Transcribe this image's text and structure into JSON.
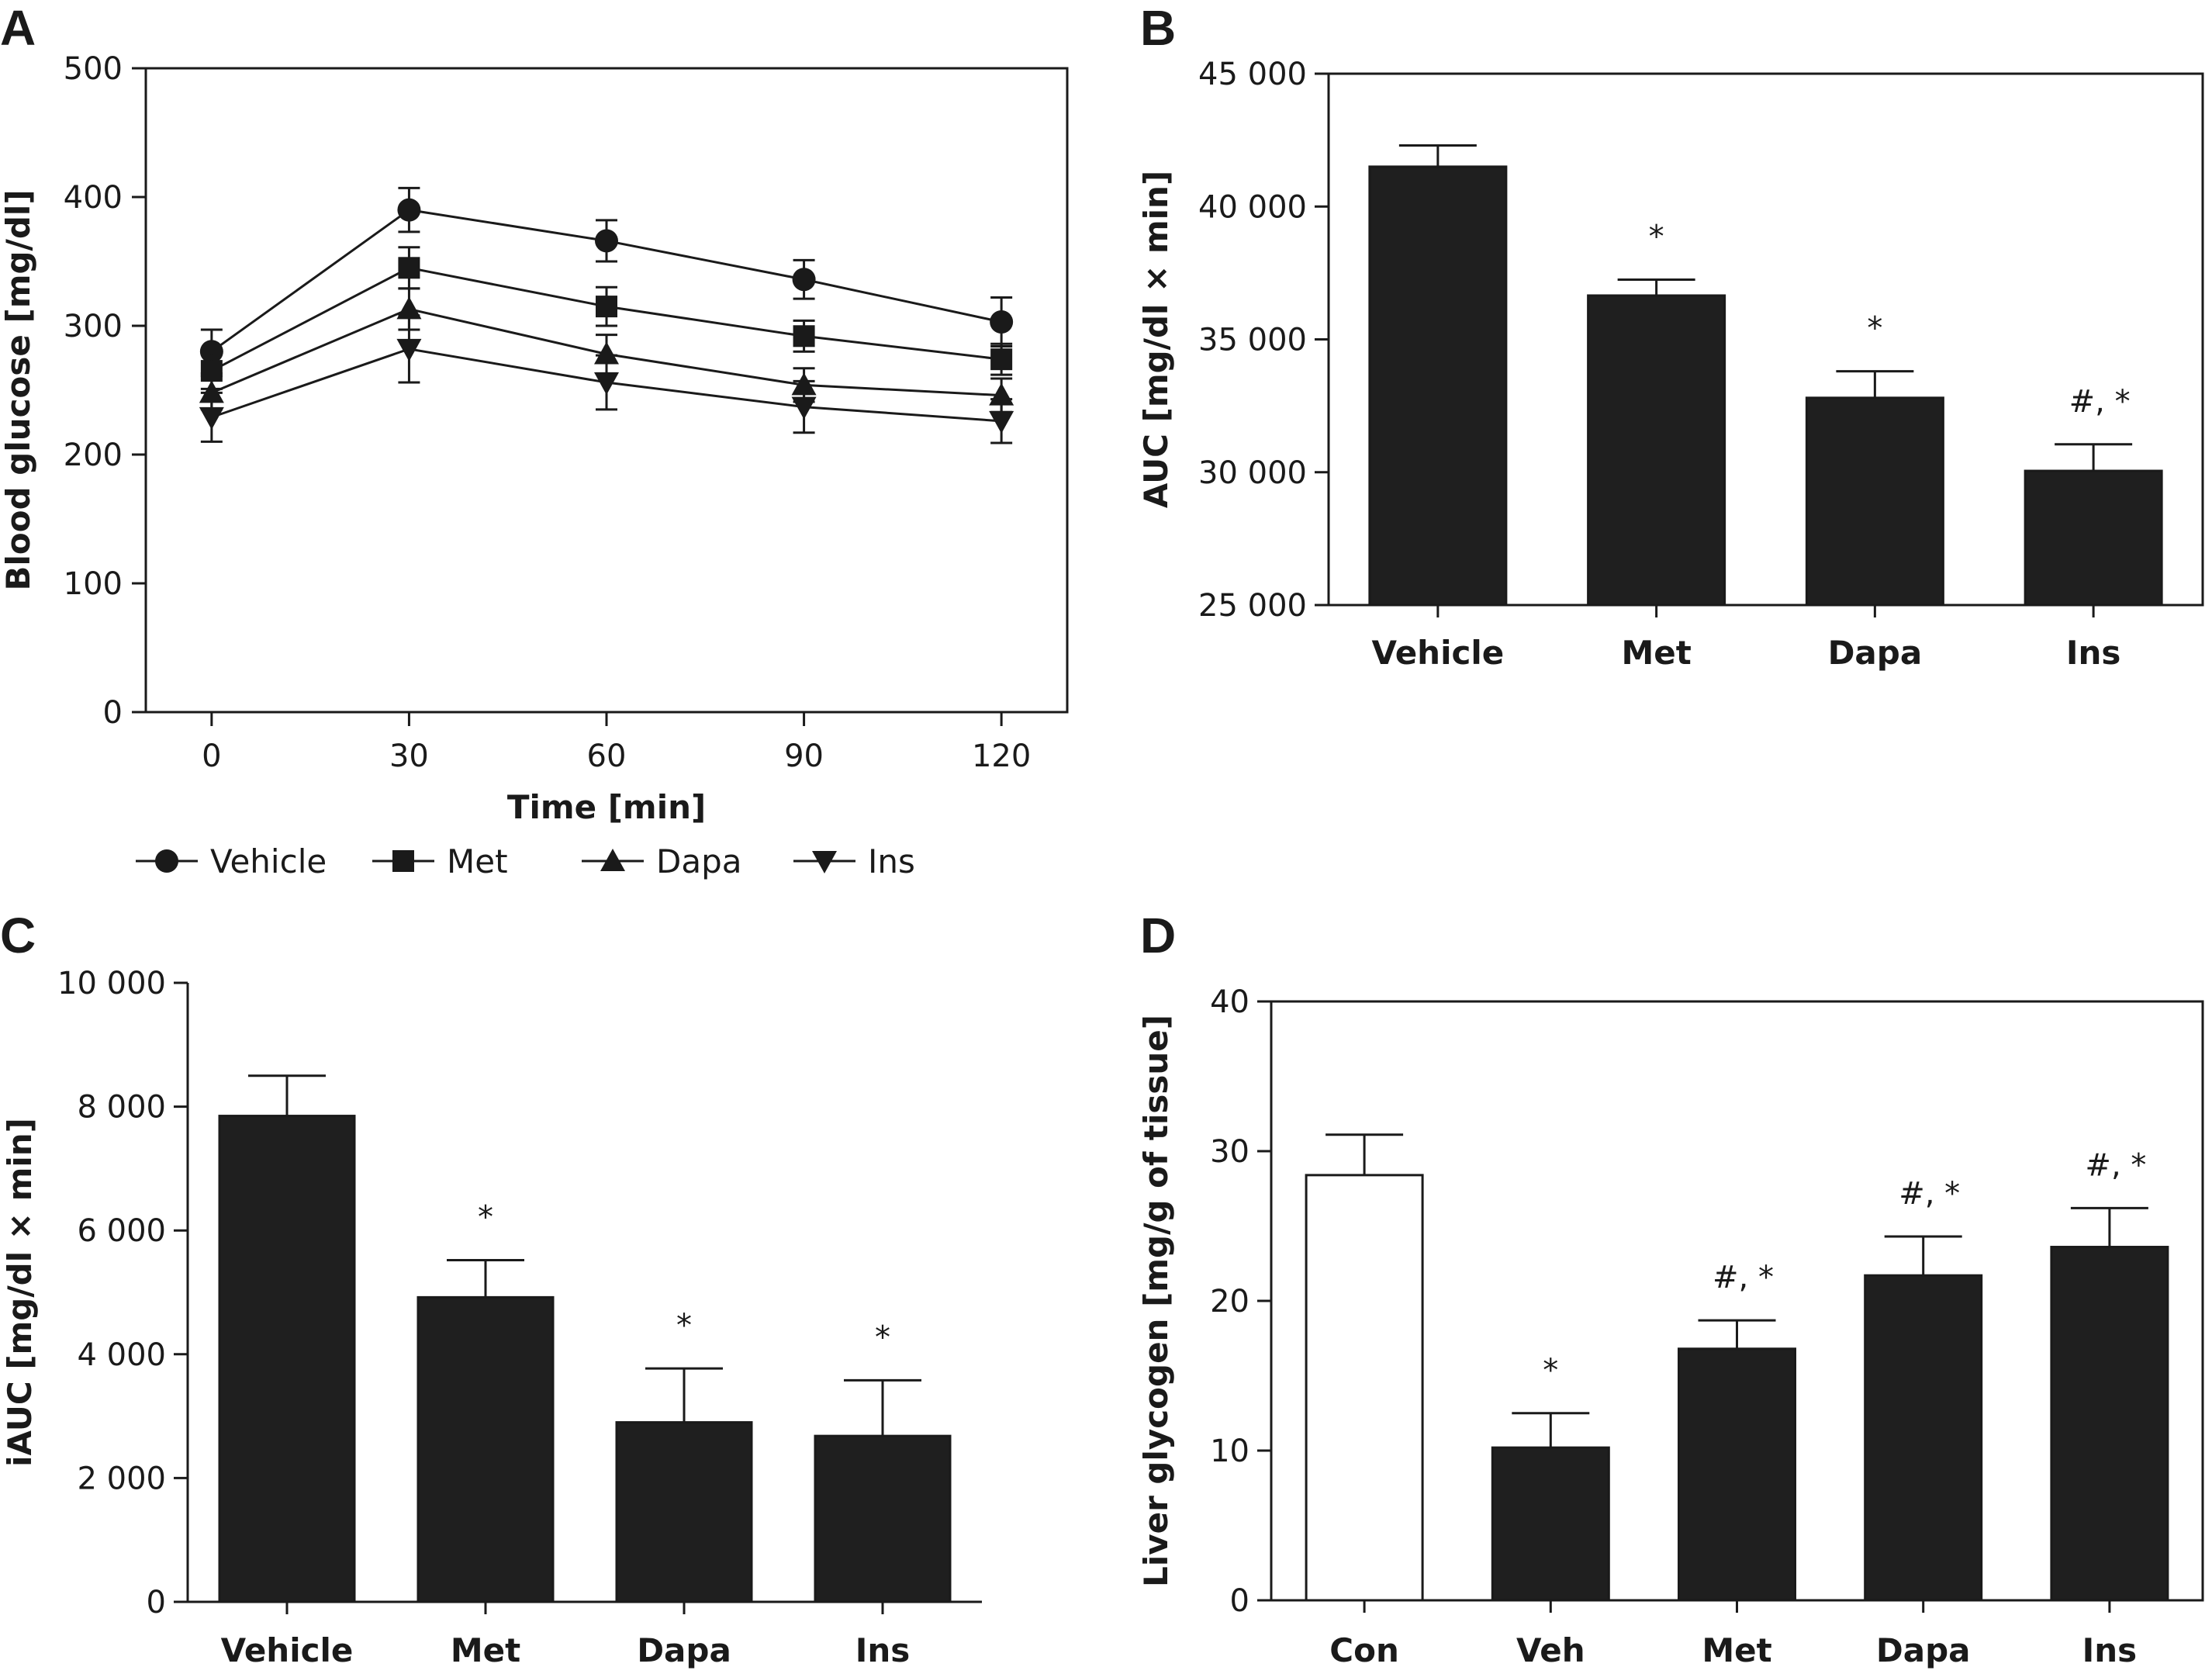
{
  "chart_data": [
    {
      "panel": "A",
      "type": "line",
      "xlabel": "Time [min]",
      "ylabel": "Blood glucose [mg/dl]",
      "x": [
        0,
        30,
        60,
        90,
        120
      ],
      "xticks": [
        "0",
        "30",
        "60",
        "90",
        "120"
      ],
      "xlim": [
        -10,
        130
      ],
      "ylim": [
        0,
        500
      ],
      "yticks": [
        "0",
        "100",
        "200",
        "300",
        "400",
        "500"
      ],
      "legend_position": "bottom",
      "series": [
        {
          "name": "Vehicle",
          "marker": "circle",
          "values": [
            280,
            390,
            366,
            336,
            303
          ],
          "errors": [
            17,
            17,
            16,
            15,
            19
          ]
        },
        {
          "name": "Met",
          "marker": "square",
          "values": [
            265,
            345,
            315,
            292,
            274
          ],
          "errors": [
            14,
            16,
            15,
            12,
            12
          ]
        },
        {
          "name": "Dapa",
          "marker": "triangle-up",
          "values": [
            248,
            313,
            278,
            254,
            246
          ],
          "errors": [
            13,
            16,
            15,
            13,
            13
          ]
        },
        {
          "name": "Ins",
          "marker": "triangle-down",
          "values": [
            229,
            282,
            256,
            237,
            226
          ],
          "errors": [
            19,
            26,
            21,
            20,
            17
          ]
        }
      ]
    },
    {
      "panel": "B",
      "type": "bar",
      "ylabel": "AUC [mg/dl × min]",
      "categories": [
        "Vehicle",
        "Met",
        "Dapa",
        "Ins"
      ],
      "values": [
        41500,
        36650,
        32800,
        30050
      ],
      "errors": [
        800,
        600,
        1000,
        1000
      ],
      "annotations": [
        "",
        "*",
        "*",
        "#, *"
      ],
      "ylim": [
        25000,
        45000
      ],
      "yticks": [
        "25 000",
        "30 000",
        "35 000",
        "40 000",
        "45 000"
      ],
      "frame": true
    },
    {
      "panel": "C",
      "type": "bar",
      "ylabel": "iAUC [mg/dl × min]",
      "categories": [
        "Vehicle",
        "Met",
        "Dapa",
        "Ins"
      ],
      "values": [
        7850,
        4920,
        2900,
        2680
      ],
      "errors": [
        650,
        600,
        870,
        900
      ],
      "annotations": [
        "",
        "*",
        "*",
        "*"
      ],
      "ylim": [
        0,
        10000
      ],
      "yticks": [
        "0",
        "2 000",
        "4 000",
        "6 000",
        "8 000",
        "10 000"
      ],
      "frame": false
    },
    {
      "panel": "D",
      "type": "bar",
      "ylabel": "Liver glycogen [mg/g of tissue]",
      "categories": [
        "Con",
        "Veh",
        "Met",
        "Dapa",
        "Ins"
      ],
      "values": [
        28.4,
        10.2,
        16.8,
        21.7,
        23.6
      ],
      "errors": [
        2.7,
        2.3,
        1.9,
        2.6,
        2.6
      ],
      "annotations": [
        "",
        "*",
        "#, *",
        "#, *",
        "#, *"
      ],
      "bar_colors": [
        "#ffffff",
        "#1f1f1f",
        "#1f1f1f",
        "#1f1f1f",
        "#1f1f1f"
      ],
      "ylim": [
        0,
        40
      ],
      "yticks": [
        "0",
        "10",
        "20",
        "30",
        "40"
      ],
      "frame": true
    }
  ],
  "colors": {
    "ink": "#1a1a1a",
    "bar_fill": "#1f1f1f",
    "control_fill": "#ffffff"
  }
}
